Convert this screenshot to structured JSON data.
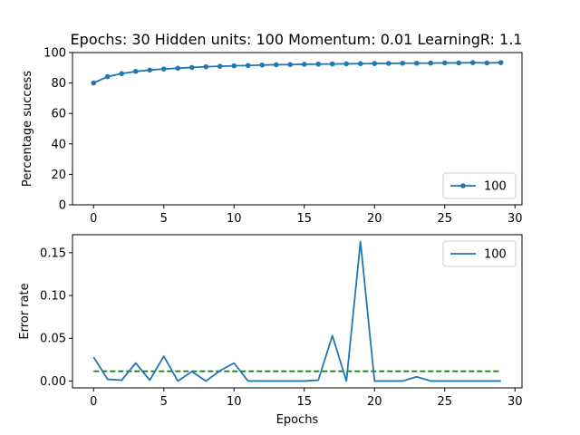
{
  "figure_title": "Epochs: 30 Hidden units: 100 Momentum: 0.01 LearningR: 1.1",
  "chart_data": [
    {
      "type": "line",
      "title": "Epochs: 30 Hidden units: 100 Momentum: 0.01 LearningR: 1.1",
      "xlabel": "",
      "ylabel": "Percentage success",
      "xlim": [
        -1.5,
        30.5
      ],
      "ylim": [
        0,
        100
      ],
      "xticks": [
        0,
        5,
        10,
        15,
        20,
        25,
        30
      ],
      "yticks": [
        0,
        20,
        40,
        60,
        80,
        100
      ],
      "legend_position": "lower-right",
      "series": [
        {
          "name": "100",
          "color": "#1f77b4",
          "marker": "dot",
          "x": [
            0,
            1,
            2,
            3,
            4,
            5,
            6,
            7,
            8,
            9,
            10,
            11,
            12,
            13,
            14,
            15,
            16,
            17,
            18,
            19,
            20,
            21,
            22,
            23,
            24,
            25,
            26,
            27,
            28,
            29
          ],
          "values": [
            80.0,
            84.2,
            86.2,
            87.6,
            88.5,
            89.2,
            89.7,
            90.2,
            90.7,
            91.0,
            91.3,
            91.5,
            91.8,
            92.0,
            92.1,
            92.3,
            92.4,
            92.5,
            92.6,
            92.7,
            92.8,
            92.9,
            93.0,
            93.0,
            93.1,
            93.2,
            93.2,
            93.4,
            93.2,
            93.4
          ]
        }
      ]
    },
    {
      "type": "line",
      "title": "",
      "xlabel": "Epochs",
      "ylabel": "Error rate",
      "xlim": [
        -1.5,
        30.5
      ],
      "ylim": [
        -0.008,
        0.171
      ],
      "xticks": [
        0,
        5,
        10,
        15,
        20,
        25,
        30
      ],
      "yticks": [
        0.0,
        0.05,
        0.1,
        0.15
      ],
      "ytick_labels": [
        "0.00",
        "0.05",
        "0.10",
        "0.15"
      ],
      "legend_position": "top-right",
      "series": [
        {
          "name": "100",
          "color": "#1f77b4",
          "x": [
            0,
            1,
            2,
            3,
            4,
            5,
            6,
            7,
            8,
            9,
            10,
            11,
            12,
            13,
            14,
            15,
            16,
            17,
            18,
            19,
            20,
            21,
            22,
            23,
            24,
            25,
            26,
            27,
            28,
            29
          ],
          "values": [
            0.028,
            0.002,
            0.001,
            0.021,
            0.001,
            0.029,
            0.0,
            0.011,
            0.0,
            0.012,
            0.021,
            0.0,
            0.0,
            0.0,
            0.0,
            0.0,
            0.001,
            0.053,
            0.0,
            0.163,
            0.0,
            0.0,
            0.0,
            0.005,
            0.0,
            0.0,
            0.0,
            0.0,
            0.0,
            0.0
          ]
        }
      ],
      "reference_line": {
        "style": "dashed",
        "color": "#008000",
        "value": 0.0115,
        "x_range": [
          0,
          29
        ]
      }
    }
  ]
}
